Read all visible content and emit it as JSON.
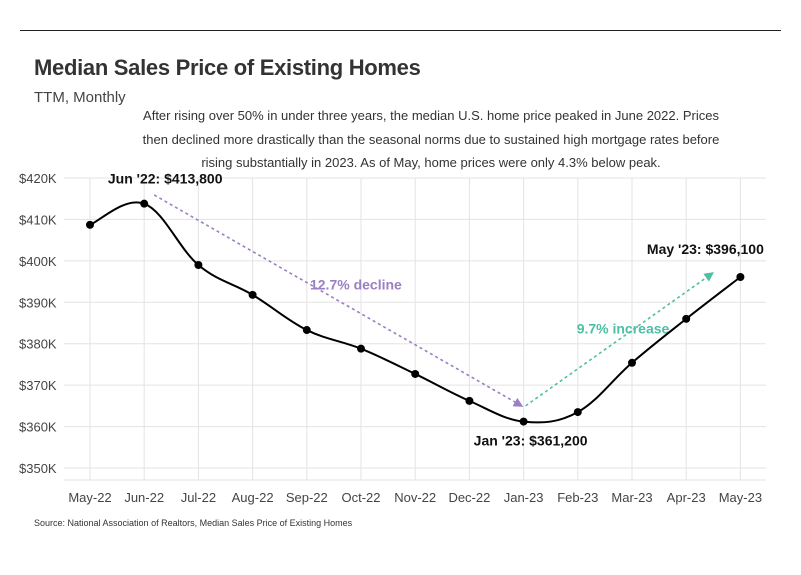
{
  "header": {
    "title": "Median Sales Price of Existing Homes",
    "subtitle": "TTM, Monthly",
    "note": "After rising over 50% in under three years, the median U.S. home price peaked in June 2022. Prices then declined more drastically than the seasonal norms due to sustained high mortgage rates before rising substantially in 2023. As of May, home prices were only 4.3% below peak."
  },
  "source": "Source:  National Association of Realtors, Median Sales Price of Existing Homes",
  "chart_data": {
    "type": "line",
    "categories": [
      "May-22",
      "Jun-22",
      "Jul-22",
      "Aug-22",
      "Sep-22",
      "Oct-22",
      "Nov-22",
      "Dec-22",
      "Jan-23",
      "Feb-23",
      "Mar-23",
      "Apr-23",
      "May-23"
    ],
    "values": [
      408700,
      413800,
      399000,
      391800,
      383300,
      378800,
      372700,
      366200,
      361200,
      363500,
      375400,
      386000,
      396100
    ],
    "ylim": [
      350000,
      420000
    ],
    "yticks": [
      350000,
      360000,
      370000,
      380000,
      390000,
      400000,
      410000,
      420000
    ],
    "ytick_labels": [
      "$350K",
      "$360K",
      "$370K",
      "$380K",
      "$390K",
      "$400K",
      "$410K",
      "$420K"
    ],
    "grid": true,
    "line_color": "#000000",
    "point_labels": [
      {
        "index": 1,
        "text": "Jun '22: $413,800",
        "placement": "above-left"
      },
      {
        "index": 8,
        "text": "Jan '23: $361,200",
        "placement": "below"
      },
      {
        "index": 12,
        "text": "May '23: $396,100",
        "placement": "above-left"
      }
    ],
    "annotations": [
      {
        "text": "12.7% decline",
        "color": "#9b7fc4",
        "from": {
          "x": "Jun-22",
          "y": 413000
        },
        "to": {
          "x": "Jan-23",
          "y": 365000
        }
      },
      {
        "text": "9.7% increase",
        "color": "#4dbfa5",
        "from": {
          "x": "Jan-23",
          "y": 365000
        },
        "to": {
          "x": "May-23",
          "y": 397000
        }
      }
    ]
  }
}
